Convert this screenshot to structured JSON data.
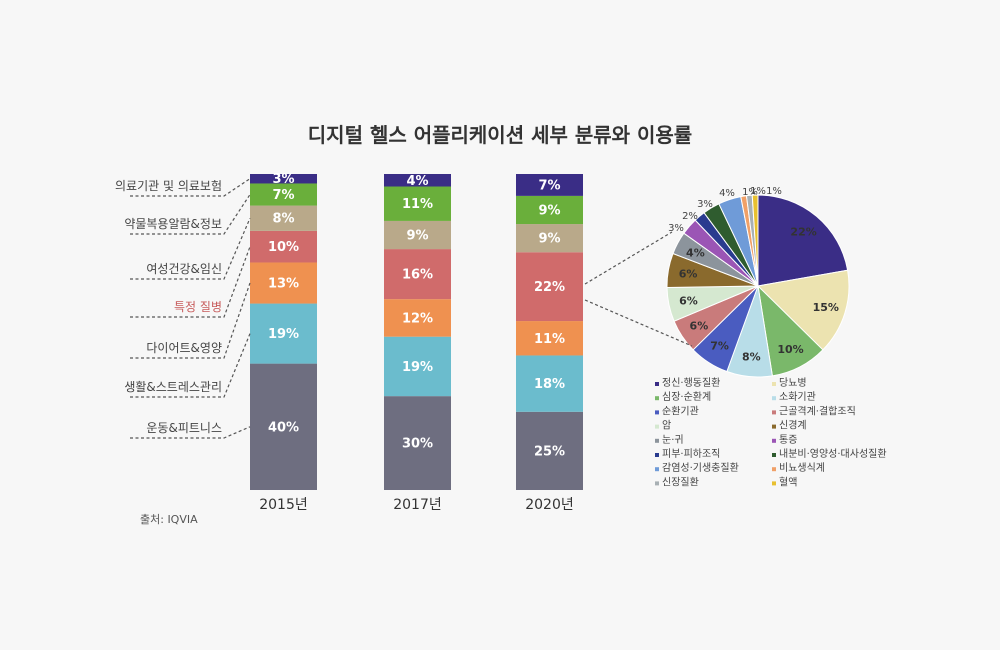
{
  "title": "디지털 헬스 어플리케이션 세부 분류와 이용률",
  "source": "출처: IQVIA",
  "chart_data": [
    {
      "type": "bar",
      "stacked": true,
      "categories": [
        "2015년",
        "2017년",
        "2020년"
      ],
      "series": [
        {
          "name": "운동&피트니스",
          "color": "#6e6e80",
          "values": [
            40,
            30,
            25
          ]
        },
        {
          "name": "생활&스트레스관리",
          "color": "#6bbccd",
          "values": [
            19,
            19,
            18
          ]
        },
        {
          "name": "다이어트&영양",
          "color": "#ef9150",
          "values": [
            13,
            12,
            11
          ]
        },
        {
          "name": "특정 질병",
          "color": "#d06b6b",
          "highlight": true,
          "values": [
            10,
            16,
            22
          ]
        },
        {
          "name": "여성건강&임신",
          "color": "#b9a98a",
          "values": [
            8,
            9,
            9
          ]
        },
        {
          "name": "약물복용알람&정보",
          "color": "#6aaf3b",
          "values": [
            7,
            11,
            9
          ]
        },
        {
          "name": "의료기관 및 의료보험",
          "color": "#3a2d86",
          "values": [
            3,
            4,
            7
          ]
        }
      ],
      "value_labels": [
        [
          "40%",
          "30%",
          "25%"
        ],
        [
          "19%",
          "19%",
          "18%"
        ],
        [
          "13%",
          "12%",
          "11%"
        ],
        [
          "10%",
          "16%",
          "22%"
        ],
        [
          "8%",
          "9%",
          "9%"
        ],
        [
          "7%",
          "11%",
          "9%"
        ],
        [
          "3%",
          "4%",
          "7%"
        ]
      ]
    },
    {
      "type": "pie",
      "slices": [
        {
          "name": "정신·행동질환",
          "value": 22,
          "label": "22%",
          "color": "#3a2d86"
        },
        {
          "name": "당뇨병",
          "value": 15,
          "label": "15%",
          "color": "#ece3b0"
        },
        {
          "name": "심장·순환계",
          "value": 10,
          "label": "10%",
          "color": "#7ab86a"
        },
        {
          "name": "소화기관",
          "value": 8,
          "label": "8%",
          "color": "#b8dde8"
        },
        {
          "name": "순환기관",
          "value": 7,
          "label": "7%",
          "color": "#4a5cc0"
        },
        {
          "name": "근골격계·결합조직",
          "value": 6,
          "label": "6%",
          "color": "#c97b7b"
        },
        {
          "name": "암",
          "value": 6,
          "label": "6%",
          "color": "#d5e8d0"
        },
        {
          "name": "신경계",
          "value": 6,
          "label": "6%",
          "color": "#8a6a2d"
        },
        {
          "name": "눈·귀",
          "value": 4,
          "label": "4%",
          "color": "#8c949c"
        },
        {
          "name": "통증",
          "value": 3,
          "label": "3%",
          "color": "#9b55b5"
        },
        {
          "name": "피부·피하조직",
          "value": 2,
          "label": "2%",
          "color": "#2a3b8f"
        },
        {
          "name": "내분비·영양성·대사성질환",
          "value": 3,
          "label": "3%",
          "color": "#2f5c2f"
        },
        {
          "name": "감염성·기생충질환",
          "value": 4,
          "label": "4%",
          "color": "#6f9bd8"
        },
        {
          "name": "비뇨생식계",
          "value": 1,
          "label": "1%",
          "color": "#f0a068"
        },
        {
          "name": "신장질환",
          "value": 1,
          "label": "1%",
          "color": "#a8b0b4"
        },
        {
          "name": "혈액",
          "value": 1,
          "label": "1%",
          "color": "#e8c030"
        }
      ]
    }
  ]
}
